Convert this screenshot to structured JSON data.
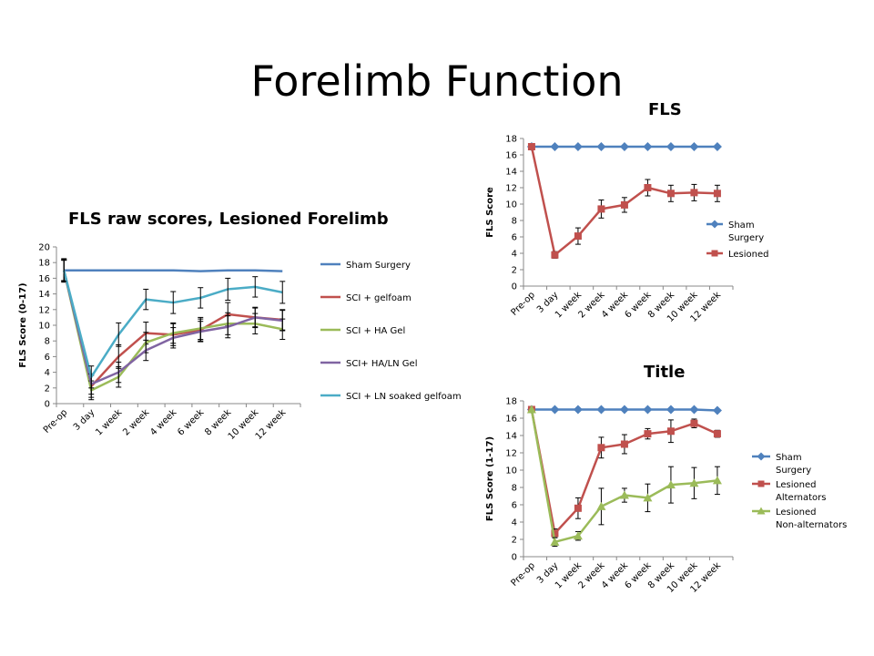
{
  "slide": {
    "title": "Forelimb Function"
  },
  "chart_data": [
    {
      "id": "c1",
      "type": "line",
      "title": "FLS raw scores, Lesioned Forelimb",
      "xlabel": "",
      "ylabel": "FLS Score (0-17)",
      "ylim": [
        0,
        20
      ],
      "ytick_step": 2,
      "categories": [
        "Pre-op",
        "3 day",
        "1 week",
        "2 week",
        "4 week",
        "6 week",
        "8 week",
        "10 week",
        "12 week"
      ],
      "legend": "right",
      "series": [
        {
          "name": "Sham Surgery",
          "color": "#4f81bd",
          "marker": "none",
          "values": [
            17,
            17,
            17,
            17,
            17,
            16.9,
            17,
            17,
            16.9
          ],
          "err": [
            0,
            0,
            0,
            0,
            0,
            0,
            0,
            0,
            0
          ]
        },
        {
          "name": "SCI + gelfoam",
          "color": "#c0504d",
          "marker": "none",
          "values": [
            17,
            2.2,
            6,
            9,
            8.8,
            9.4,
            11.4,
            11,
            10.7
          ],
          "err": [
            1.5,
            1.4,
            1.5,
            1.4,
            1.4,
            1.4,
            1.5,
            1.2,
            1.3
          ]
        },
        {
          "name": "SCI + HA Gel",
          "color": "#9bbb59",
          "marker": "none",
          "values": [
            17,
            1.7,
            3.4,
            7.8,
            9,
            9.6,
            10.2,
            10.2,
            9.5
          ],
          "err": [
            1.3,
            1.2,
            1.3,
            1.3,
            1.3,
            1.4,
            1.4,
            1.3,
            1.3
          ]
        },
        {
          "name": "SCI+ HA/LN Gel",
          "color": "#8064a2",
          "marker": "none",
          "values": [
            17,
            2.5,
            4,
            6.8,
            8.4,
            9.2,
            9.8,
            11,
            10.6
          ],
          "err": [
            1.3,
            1.3,
            1.3,
            1.3,
            1.3,
            1.3,
            1.4,
            1.3,
            1.3
          ]
        },
        {
          "name": "SCI + LN soaked gelfoam",
          "color": "#4bacc6",
          "marker": "none",
          "values": [
            17,
            3.4,
            8.8,
            13.3,
            12.9,
            13.5,
            14.6,
            14.9,
            14.2
          ],
          "err": [
            1.4,
            1.4,
            1.5,
            1.3,
            1.4,
            1.3,
            1.4,
            1.3,
            1.4
          ]
        }
      ]
    },
    {
      "id": "c2",
      "type": "line",
      "title": "FLS",
      "xlabel": "",
      "ylabel": "FLS Score",
      "ylim": [
        0,
        18
      ],
      "ytick_step": 2,
      "categories": [
        "Pre-op",
        "3 day",
        "1 week",
        "2 week",
        "4 week",
        "6 week",
        "8 week",
        "10 week",
        "12 week"
      ],
      "legend": "right",
      "series": [
        {
          "name": "Sham Surgery",
          "color": "#4f81bd",
          "marker": "diamond",
          "values": [
            17,
            17,
            17,
            17,
            17,
            17,
            17,
            17,
            17
          ],
          "err": [
            0,
            0,
            0,
            0,
            0,
            0,
            0,
            0,
            0
          ]
        },
        {
          "name": "Lesioned",
          "color": "#c0504d",
          "marker": "square",
          "values": [
            17,
            3.8,
            6.1,
            9.4,
            9.9,
            12,
            11.3,
            11.4,
            11.3
          ],
          "err": [
            0,
            0.4,
            1,
            1.1,
            0.9,
            1,
            1,
            1,
            1
          ]
        }
      ]
    },
    {
      "id": "c3",
      "type": "line",
      "title": "Title",
      "xlabel": "",
      "ylabel": "FLS Score (1-17)",
      "ylim": [
        0,
        18
      ],
      "ytick_step": 2,
      "categories": [
        "Pre-op",
        "3 day",
        "1 week",
        "2 week",
        "4 week",
        "6 week",
        "8 week",
        "10 week",
        "12 week"
      ],
      "legend": "right",
      "series": [
        {
          "name": "Sham Surgery",
          "color": "#4f81bd",
          "marker": "diamond",
          "values": [
            17,
            17,
            17,
            17,
            17,
            17,
            17,
            17,
            16.9
          ],
          "err": [
            0,
            0,
            0,
            0,
            0,
            0,
            0,
            0,
            0
          ]
        },
        {
          "name": "Lesioned Alternators",
          "color": "#c0504d",
          "marker": "square",
          "values": [
            17,
            2.7,
            5.6,
            12.6,
            13,
            14.2,
            14.5,
            15.4,
            14.2
          ],
          "err": [
            0,
            0.5,
            1.2,
            1.2,
            1.1,
            0.6,
            1.3,
            0.5,
            0.4
          ]
        },
        {
          "name": "Lesioned Non-alternators",
          "color": "#9bbb59",
          "marker": "triangle",
          "values": [
            17,
            1.7,
            2.4,
            5.8,
            7.1,
            6.8,
            8.3,
            8.5,
            8.8
          ],
          "err": [
            0,
            0.5,
            0.5,
            2.1,
            0.8,
            1.6,
            2.1,
            1.8,
            1.6
          ]
        }
      ]
    }
  ]
}
